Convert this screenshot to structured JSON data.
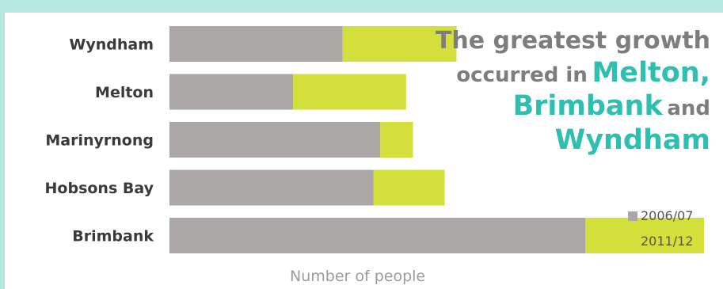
{
  "headline": {
    "part1": "The greatest growth",
    "part2": "occurred in",
    "hl1": "Melton,",
    "hl2": "Brimbank",
    "part3": "and",
    "hl3": "Wyndham"
  },
  "colors": {
    "s2006": "#aba7a7",
    "s2011": "#d3e03b",
    "accent": "#2fbfb0",
    "frame": "#b6e8e2"
  },
  "chart_data": {
    "type": "bar",
    "orientation": "horizontal",
    "stacked": true,
    "categories": [
      "Wyndham",
      "Melton",
      "Marinyrnong",
      "Hobsons Bay",
      "Brimbank"
    ],
    "series": [
      {
        "name": "2006/07",
        "values": [
          175,
          125,
          213,
          206,
          420
        ]
      },
      {
        "name": "2011/12",
        "values": [
          115,
          114,
          33,
          72,
          120
        ]
      }
    ],
    "xlabel": "Number of people",
    "ylabel": "",
    "xlim": [
      0,
      560
    ],
    "grid": false,
    "legend": "bottom-right"
  }
}
